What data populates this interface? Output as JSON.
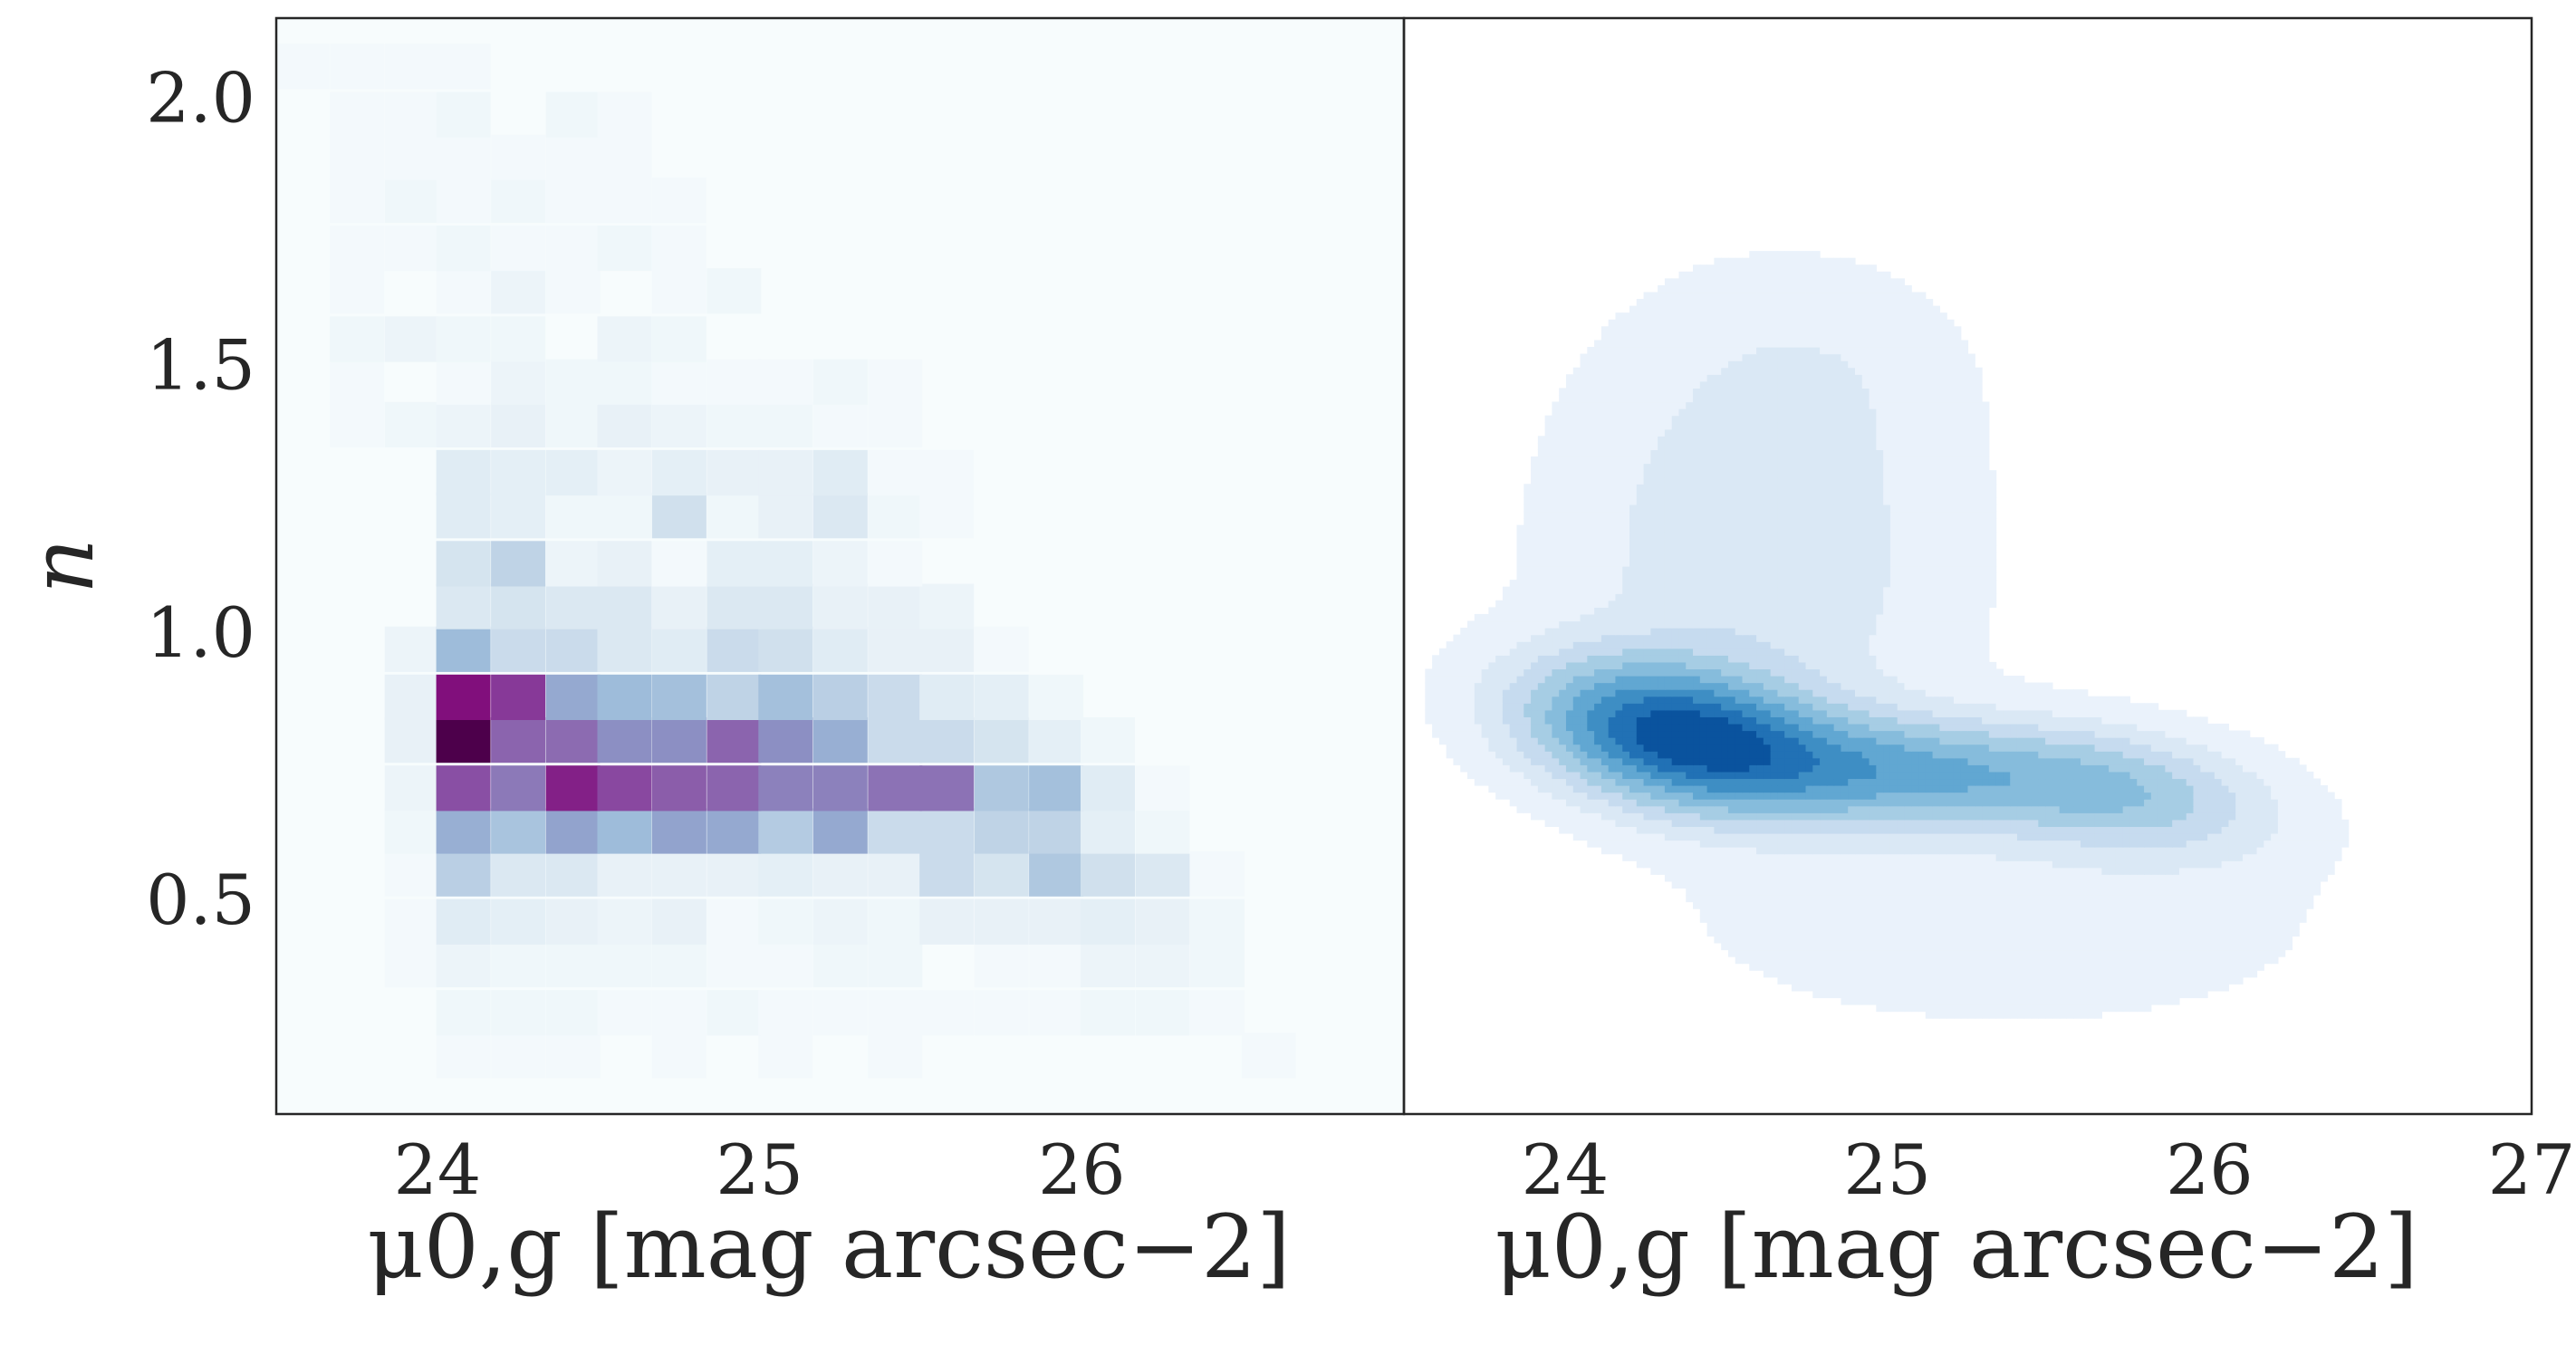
{
  "chart_data": [
    {
      "type": "heatmap",
      "title": "",
      "xlabel": "μ0,g [mag arcsec−2]",
      "ylabel": "n",
      "xlim": [
        23.5,
        27.0
      ],
      "ylim": [
        0.1,
        2.15
      ],
      "xticks": [
        "24",
        "25",
        "26"
      ],
      "yticks": [
        "0.5",
        "1.0",
        "1.5",
        "2.0"
      ],
      "colormap": "BuPu",
      "background_color": "#f7fcfd",
      "bin_width_x": 0.167,
      "bin_width_y": 0.084,
      "x_bin_centers": [
        23.58,
        23.75,
        23.92,
        24.08,
        24.25,
        24.42,
        24.58,
        24.75,
        24.92,
        25.08,
        25.25,
        25.42,
        25.58,
        25.75,
        25.92,
        26.08,
        26.25,
        26.42,
        26.58
      ],
      "y_bin_centers": [
        0.21,
        0.29,
        0.38,
        0.46,
        0.55,
        0.63,
        0.71,
        0.8,
        0.88,
        0.97,
        1.05,
        1.13,
        1.22,
        1.3,
        1.39,
        1.47,
        1.55,
        1.64,
        1.72,
        1.81,
        1.89,
        1.97,
        2.06
      ],
      "counts": [
        [
          0,
          0,
          0,
          1,
          1,
          1,
          0,
          1,
          0,
          1,
          0,
          1,
          0,
          0,
          0,
          0,
          0,
          0,
          1
        ],
        [
          0,
          0,
          0,
          2,
          2,
          2,
          1,
          1,
          2,
          1,
          1,
          1,
          1,
          1,
          1,
          2,
          2,
          1,
          0
        ],
        [
          0,
          0,
          1,
          3,
          2,
          2,
          2,
          2,
          1,
          1,
          2,
          2,
          0,
          1,
          1,
          3,
          3,
          2,
          0
        ],
        [
          0,
          0,
          1,
          6,
          5,
          4,
          3,
          4,
          1,
          2,
          3,
          2,
          4,
          4,
          4,
          5,
          4,
          2,
          0
        ],
        [
          0,
          0,
          1,
          13,
          7,
          7,
          4,
          4,
          4,
          5,
          4,
          4,
          10,
          8,
          15,
          9,
          7,
          1,
          0
        ],
        [
          0,
          0,
          2,
          20,
          16,
          22,
          18,
          22,
          21,
          14,
          21,
          10,
          10,
          12,
          12,
          5,
          2,
          0,
          0
        ],
        [
          0,
          0,
          3,
          34,
          28,
          40,
          35,
          32,
          31,
          27,
          27,
          29,
          29,
          15,
          17,
          6,
          1,
          0,
          0
        ],
        [
          0,
          0,
          4,
          48,
          31,
          30,
          25,
          25,
          31,
          25,
          20,
          10,
          10,
          8,
          5,
          2,
          0,
          0,
          0
        ],
        [
          0,
          0,
          4,
          42,
          37,
          21,
          18,
          17,
          12,
          17,
          13,
          10,
          6,
          5,
          2,
          0,
          0,
          0,
          0
        ],
        [
          0,
          0,
          3,
          18,
          10,
          10,
          7,
          6,
          10,
          9,
          6,
          4,
          4,
          1,
          0,
          0,
          0,
          0,
          0
        ],
        [
          0,
          0,
          0,
          7,
          8,
          7,
          7,
          4,
          7,
          7,
          4,
          4,
          3,
          0,
          0,
          0,
          0,
          0,
          0
        ],
        [
          0,
          0,
          0,
          8,
          12,
          3,
          4,
          1,
          5,
          5,
          3,
          1,
          0,
          0,
          0,
          0,
          0,
          0,
          0
        ],
        [
          0,
          0,
          0,
          6,
          5,
          2,
          2,
          9,
          2,
          4,
          7,
          2,
          1,
          0,
          0,
          0,
          0,
          0,
          0
        ],
        [
          0,
          0,
          0,
          6,
          5,
          5,
          3,
          5,
          4,
          4,
          6,
          1,
          1,
          0,
          0,
          0,
          0,
          0,
          0
        ],
        [
          0,
          1,
          2,
          3,
          4,
          2,
          4,
          3,
          2,
          2,
          1,
          1,
          0,
          0,
          0,
          0,
          0,
          0,
          0
        ],
        [
          0,
          1,
          0,
          1,
          3,
          2,
          2,
          1,
          1,
          1,
          2,
          1,
          0,
          0,
          0,
          0,
          0,
          0,
          0
        ],
        [
          0,
          2,
          3,
          2,
          2,
          0,
          3,
          2,
          0,
          0,
          0,
          0,
          0,
          0,
          0,
          0,
          0,
          0,
          0
        ],
        [
          0,
          1,
          0,
          1,
          3,
          1,
          0,
          1,
          2,
          0,
          0,
          0,
          0,
          0,
          0,
          0,
          0,
          0,
          0
        ],
        [
          0,
          1,
          1,
          2,
          1,
          1,
          2,
          1,
          0,
          0,
          0,
          0,
          0,
          0,
          0,
          0,
          0,
          0,
          0
        ],
        [
          0,
          1,
          2,
          1,
          2,
          1,
          1,
          1,
          0,
          0,
          0,
          0,
          0,
          0,
          0,
          0,
          0,
          0,
          0
        ],
        [
          0,
          1,
          1,
          1,
          1,
          1,
          1,
          0,
          0,
          0,
          0,
          0,
          0,
          0,
          0,
          0,
          0,
          0,
          0
        ],
        [
          0,
          1,
          1,
          2,
          0,
          2,
          1,
          0,
          0,
          0,
          0,
          0,
          0,
          0,
          0,
          0,
          0,
          0,
          0
        ],
        [
          1,
          1,
          1,
          1,
          0,
          0,
          0,
          0,
          0,
          0,
          0,
          0,
          0,
          0,
          0,
          0,
          0,
          0,
          0
        ]
      ]
    },
    {
      "type": "contour",
      "title": "",
      "xlabel": "μ0,g [mag arcsec−2]",
      "ylabel": "",
      "xlim": [
        23.5,
        27.0
      ],
      "ylim": [
        0.1,
        2.15
      ],
      "xticks": [
        "24",
        "25",
        "26",
        "27"
      ],
      "colormap": "Blues",
      "level_colors": [
        "#eaf2fb",
        "#dae8f5",
        "#c6dbef",
        "#a6cde4",
        "#86bcdc",
        "#61a7d2",
        "#3e8ec4",
        "#2171b5",
        "#0a539e"
      ],
      "density_model": {
        "components": [
          {
            "weight": 1.0,
            "mean": [
              24.35,
              0.81
            ],
            "sd": [
              0.3,
              0.09
            ],
            "rho": -0.3
          },
          {
            "weight": 0.55,
            "mean": [
              25.05,
              0.74
            ],
            "sd": [
              0.4,
              0.07
            ],
            "rho": -0.2
          },
          {
            "weight": 0.35,
            "mean": [
              25.75,
              0.7
            ],
            "sd": [
              0.3,
              0.08
            ],
            "rho": -0.3
          },
          {
            "weight": 0.2,
            "mean": [
              24.6,
              1.15
            ],
            "sd": [
              0.4,
              0.28
            ],
            "rho": 0.0
          },
          {
            "weight": 0.05,
            "mean": [
              24.8,
              1.5
            ],
            "sd": [
              0.3,
              0.12
            ],
            "rho": 0.0
          },
          {
            "weight": 0.1,
            "mean": [
              25.4,
              0.45
            ],
            "sd": [
              0.6,
              0.12
            ],
            "rho": 0.0
          }
        ]
      }
    }
  ]
}
